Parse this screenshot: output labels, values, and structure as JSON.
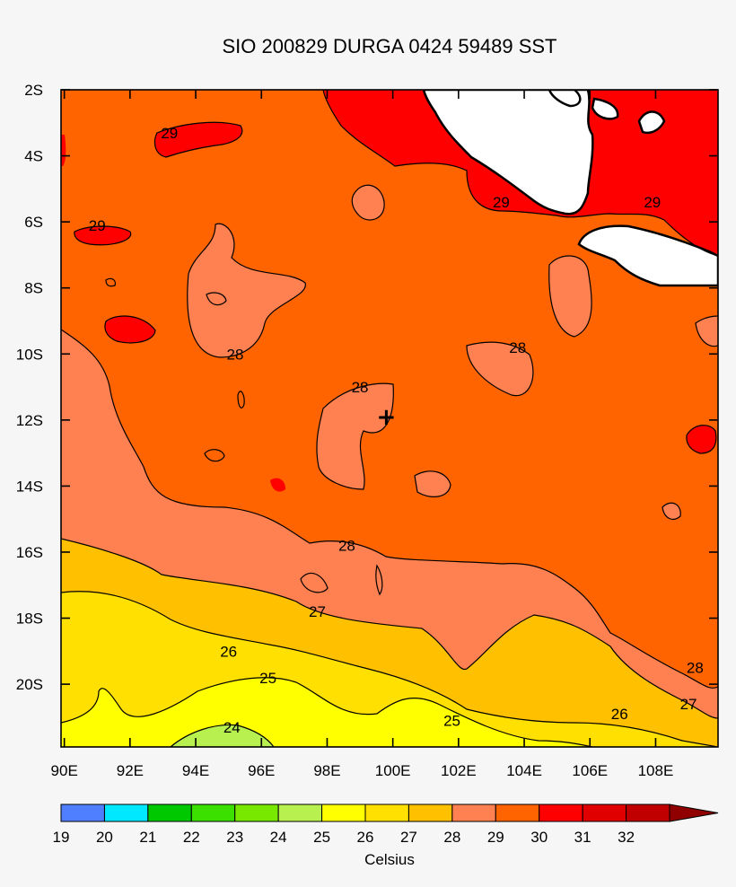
{
  "chart_data": {
    "type": "contour",
    "title": "SIO 200829 DURGA 0424 59489 SST",
    "x_ticks": [
      "90E",
      "92E",
      "94E",
      "96E",
      "98E",
      "100E",
      "102E",
      "104E",
      "106E",
      "108E"
    ],
    "x_tick_values": [
      90,
      92,
      94,
      96,
      98,
      100,
      102,
      104,
      106,
      108
    ],
    "y_ticks": [
      "2S",
      "4S",
      "6S",
      "8S",
      "10S",
      "12S",
      "14S",
      "16S",
      "18S",
      "20S"
    ],
    "y_tick_values": [
      -2,
      -4,
      -6,
      -8,
      -10,
      -12,
      -14,
      -16,
      -18,
      -20
    ],
    "xlim": [
      89.9,
      109.9
    ],
    "ylim": [
      -21.9,
      -2.0
    ],
    "colorbar": {
      "label": "Celsius",
      "levels": [
        19,
        20,
        21,
        22,
        23,
        24,
        25,
        26,
        27,
        28,
        29,
        30,
        31,
        32
      ],
      "level_labels": [
        "19",
        "20",
        "21",
        "22",
        "23",
        "24",
        "25",
        "26",
        "27",
        "28",
        "29",
        "30",
        "31",
        "32"
      ],
      "colors": [
        "#4f7fff",
        "#00e8ff",
        "#00c800",
        "#3ce000",
        "#78e800",
        "#b8f050",
        "#ffff00",
        "#ffe000",
        "#ffc000",
        "#ff8050",
        "#ff6400",
        "#ff0000",
        "#e00000",
        "#c00000",
        "#900000"
      ]
    },
    "contour_labels": [
      {
        "text": "29",
        "lon": 93.2,
        "lat": -3.3
      },
      {
        "text": "29",
        "lon": 91.0,
        "lat": -6.1
      },
      {
        "text": "29",
        "lon": 103.3,
        "lat": -5.4
      },
      {
        "text": "29",
        "lon": 107.9,
        "lat": -5.4
      },
      {
        "text": "28",
        "lon": 95.2,
        "lat": -10.0
      },
      {
        "text": "28",
        "lon": 99.0,
        "lat": -11.0
      },
      {
        "text": "28",
        "lon": 103.8,
        "lat": -9.8
      },
      {
        "text": "28",
        "lon": 98.6,
        "lat": -15.8
      },
      {
        "text": "28",
        "lon": 109.2,
        "lat": -19.5
      },
      {
        "text": "27",
        "lon": 97.7,
        "lat": -17.8
      },
      {
        "text": "27",
        "lon": 109.0,
        "lat": -20.6
      },
      {
        "text": "26",
        "lon": 95.0,
        "lat": -19.0
      },
      {
        "text": "26",
        "lon": 106.9,
        "lat": -20.9
      },
      {
        "text": "25",
        "lon": 96.2,
        "lat": -19.8
      },
      {
        "text": "25",
        "lon": 101.8,
        "lat": -21.1
      },
      {
        "text": "24",
        "lon": 95.1,
        "lat": -21.3
      }
    ],
    "storm_marker": {
      "symbol": "+",
      "lon": 99.8,
      "lat": -11.9
    }
  }
}
